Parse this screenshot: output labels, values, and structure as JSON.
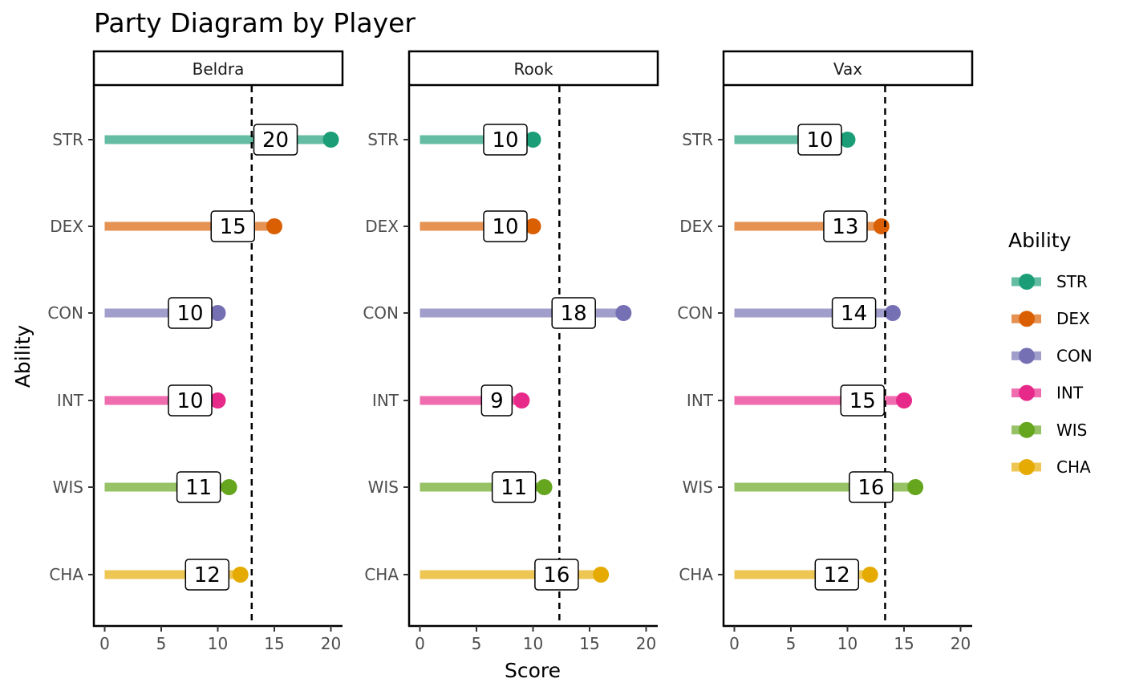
{
  "chart_data": {
    "type": "lollipop",
    "title": "Party Diagram by Player",
    "xlabel": "Score",
    "ylabel": "Ability",
    "xlim": [
      0,
      20
    ],
    "x_ticks": [
      "0",
      "5",
      "10",
      "15",
      "20"
    ],
    "categories": [
      "STR",
      "DEX",
      "CON",
      "INT",
      "WIS",
      "CHA"
    ],
    "colors": {
      "STR": "#1b9e77",
      "DEX": "#d95f02",
      "CON": "#7570b3",
      "INT": "#e7298a",
      "WIS": "#66a61e",
      "CHA": "#e6ab02"
    },
    "legend": {
      "title": "Ability",
      "position": "right"
    },
    "grid": false,
    "panels": [
      {
        "name": "Beldra",
        "values": [
          20,
          15,
          10,
          10,
          11,
          12
        ],
        "mean": 13.0
      },
      {
        "name": "Rook",
        "values": [
          10,
          10,
          18,
          9,
          11,
          16
        ],
        "mean": 12.33
      },
      {
        "name": "Vax",
        "values": [
          10,
          13,
          14,
          15,
          16,
          12
        ],
        "mean": 13.33
      }
    ]
  }
}
